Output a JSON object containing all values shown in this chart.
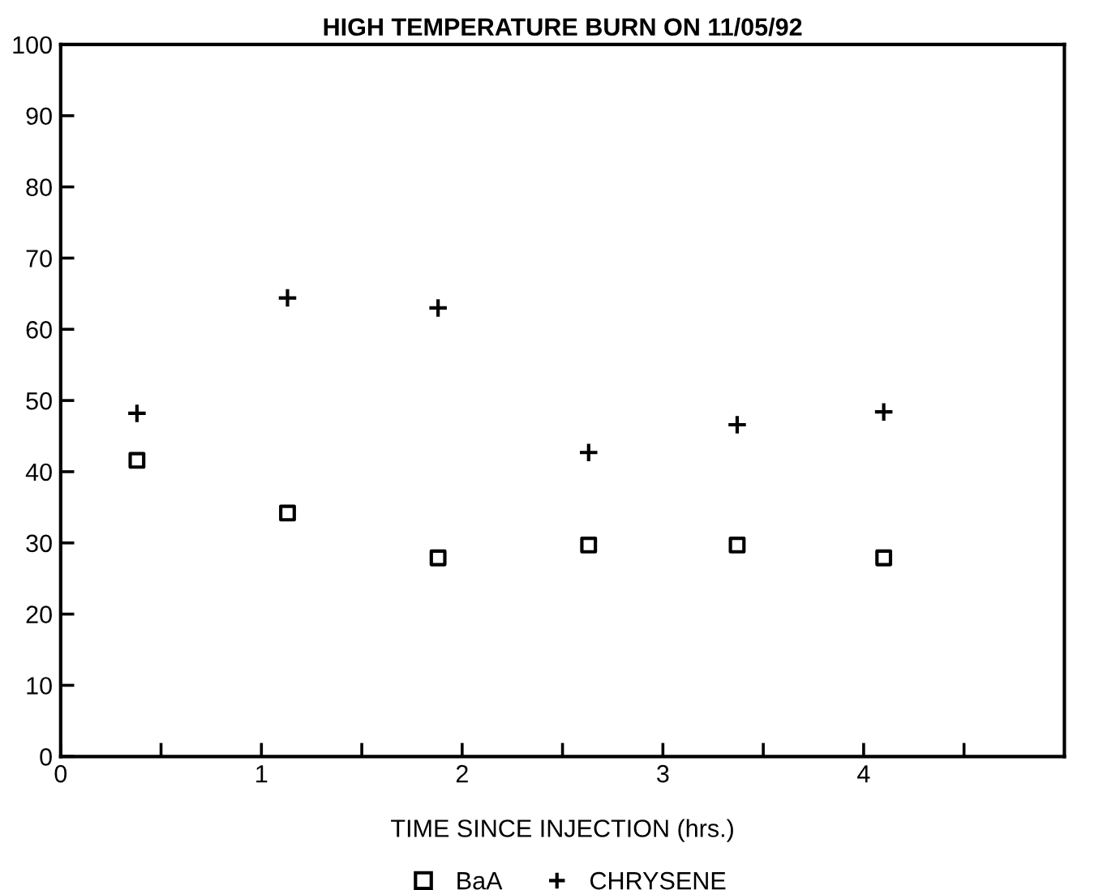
{
  "chart_data": {
    "type": "scatter",
    "title": "HIGH TEMPERATURE BURN ON 11/05/92",
    "xlabel": "TIME SINCE INJECTION (hrs.)",
    "xlim": [
      0,
      5
    ],
    "xticks": [
      0,
      {
        "value": 0.5,
        "label": null
      },
      1,
      {
        "value": 1.5,
        "label": null
      },
      2,
      {
        "value": 2.5,
        "label": null
      },
      3,
      {
        "value": 3.5,
        "label": null
      },
      4,
      {
        "value": 4.5,
        "label": null
      }
    ],
    "ylim": [
      0,
      100
    ],
    "yticks": [
      0,
      10,
      20,
      30,
      40,
      50,
      60,
      70,
      80,
      90,
      100
    ],
    "grid": false,
    "legend": "bottom",
    "series": [
      {
        "name": "BaA",
        "color": "#000000",
        "marker": "square",
        "x": [
          0.38,
          1.13,
          1.88,
          2.63,
          3.37,
          4.1
        ],
        "values": [
          41.6,
          34.2,
          27.9,
          29.7,
          29.7,
          27.9
        ]
      },
      {
        "name": "CHRYSENE",
        "color": "#000000",
        "marker": "cross",
        "x": [
          0.38,
          1.13,
          1.88,
          2.63,
          3.37,
          4.1
        ],
        "values": [
          48.2,
          64.4,
          63.0,
          42.7,
          46.6,
          48.4
        ]
      }
    ]
  }
}
